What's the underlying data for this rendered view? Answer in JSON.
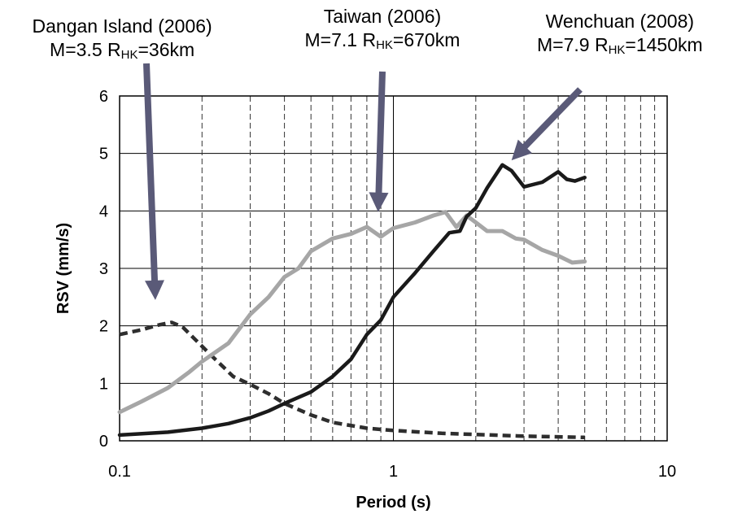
{
  "chart_data": {
    "type": "line",
    "xlabel": "Period (s)",
    "ylabel": "RSV (mm/s)",
    "xscale": "log",
    "xlim": [
      0.1,
      10
    ],
    "ylim": [
      0,
      6
    ],
    "x_ticks": [
      "0.1",
      "1",
      "10"
    ],
    "y_ticks": [
      "0",
      "1",
      "2",
      "3",
      "4",
      "5",
      "6"
    ],
    "grid": {
      "horizontal": "solid",
      "vertical_minor": "dashed"
    },
    "series": [
      {
        "key": "dangan",
        "style": "dashed",
        "color": "#2e2e2e",
        "x": [
          0.1,
          0.12,
          0.14,
          0.155,
          0.17,
          0.19,
          0.22,
          0.26,
          0.3,
          0.35,
          0.4,
          0.5,
          0.6,
          0.8,
          1.0,
          1.5,
          2.0,
          3.0,
          4.0,
          5.0
        ],
        "y": [
          1.85,
          1.93,
          2.02,
          2.06,
          1.98,
          1.75,
          1.45,
          1.12,
          0.98,
          0.82,
          0.65,
          0.45,
          0.32,
          0.22,
          0.18,
          0.13,
          0.11,
          0.08,
          0.07,
          0.06
        ]
      },
      {
        "key": "taiwan",
        "style": "solid",
        "color": "#a6a6a6",
        "x": [
          0.1,
          0.12,
          0.15,
          0.18,
          0.2,
          0.25,
          0.3,
          0.35,
          0.4,
          0.45,
          0.5,
          0.6,
          0.7,
          0.8,
          0.9,
          1.0,
          1.2,
          1.4,
          1.55,
          1.7,
          1.85,
          2.0,
          2.2,
          2.5,
          2.8,
          3.0,
          3.5,
          4.0,
          4.5,
          5.0
        ],
        "y": [
          0.5,
          0.68,
          0.92,
          1.2,
          1.38,
          1.7,
          2.2,
          2.5,
          2.85,
          3.0,
          3.3,
          3.52,
          3.6,
          3.72,
          3.55,
          3.7,
          3.8,
          3.92,
          3.98,
          3.72,
          3.92,
          3.8,
          3.65,
          3.65,
          3.52,
          3.5,
          3.32,
          3.22,
          3.1,
          3.12
        ]
      },
      {
        "key": "wenchuan",
        "style": "solid",
        "color": "#1a1a1a",
        "x": [
          0.1,
          0.15,
          0.2,
          0.25,
          0.3,
          0.35,
          0.4,
          0.5,
          0.6,
          0.7,
          0.8,
          0.9,
          1.0,
          1.2,
          1.4,
          1.6,
          1.75,
          1.85,
          2.0,
          2.2,
          2.5,
          2.7,
          3.0,
          3.5,
          4.0,
          4.3,
          4.6,
          5.0
        ],
        "y": [
          0.1,
          0.15,
          0.22,
          0.3,
          0.4,
          0.52,
          0.65,
          0.85,
          1.12,
          1.42,
          1.85,
          2.1,
          2.5,
          2.92,
          3.3,
          3.62,
          3.65,
          3.9,
          4.05,
          4.4,
          4.8,
          4.7,
          4.42,
          4.5,
          4.68,
          4.55,
          4.52,
          4.58
        ]
      }
    ],
    "annotations": [
      {
        "key": "dangan",
        "line1": "Dangan Island (2006)",
        "m_label": "M=3.5 R",
        "sub": "HK",
        "dist_label": "=36km",
        "arrow_tip": {
          "x": 0.135,
          "y": 2.45
        }
      },
      {
        "key": "taiwan",
        "line1": "Taiwan (2006)",
        "m_label": "M=7.1 R",
        "sub": "HK",
        "dist_label": "=670km",
        "arrow_tip": {
          "x": 0.88,
          "y": 3.98
        }
      },
      {
        "key": "wenchuan",
        "line1": "Wenchuan (2008)",
        "m_label": "M=7.9 R",
        "sub": "HK",
        "dist_label": "=1450km",
        "arrow_tip": {
          "x": 2.7,
          "y": 4.88
        }
      }
    ],
    "arrow_color": "#5a5a78"
  }
}
